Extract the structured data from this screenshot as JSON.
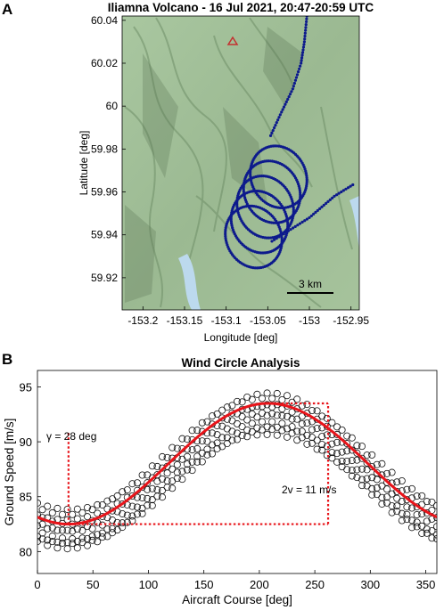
{
  "panel_a": {
    "label": "A",
    "title": "Iliamna Volcano - 16 Jul 2021, 20:47-20:59 UTC",
    "xlabel": "Longitude [deg]",
    "ylabel": "Latitude [deg]",
    "xticks": [
      "-153.2",
      "-153.15",
      "-153.1",
      "-153.05",
      "-153",
      "-152.95"
    ],
    "yticks": [
      "60.04",
      "60.02",
      "60",
      "59.98",
      "59.96",
      "59.94",
      "59.92"
    ],
    "scalebar_label": "3 km",
    "track_color": "#0d1a8c",
    "map_color": "#9fbf96"
  },
  "panel_b": {
    "label": "B",
    "title": "Wind Circle Analysis",
    "xlabel": "Aircraft Course [deg]",
    "ylabel": "Ground Speed [m/s]",
    "xticks": [
      "0",
      "50",
      "100",
      "150",
      "200",
      "250",
      "300",
      "350"
    ],
    "yticks": [
      "95",
      "90",
      "85",
      "80"
    ],
    "gamma_label": "γ = 28 deg",
    "amp_label": "2v = 11 m/s",
    "fit_color": "#e8141a",
    "annotation_color": "#e8141a"
  },
  "chart_data": [
    {
      "type": "scatter",
      "title": "Iliamna Volcano - 16 Jul 2021, 20:47-20:59 UTC",
      "xlabel": "Longitude [deg]",
      "ylabel": "Latitude [deg]",
      "xlim": [
        -153.225,
        -152.94
      ],
      "ylim": [
        59.905,
        60.042
      ],
      "grid": false,
      "background": "shaded relief map",
      "series": [
        {
          "transit_in": [
            [
              -153.003,
              60.042
            ],
            [
              -153.006,
              60.03
            ],
            [
              -153.01,
              60.02
            ],
            [
              -153.02,
              60.008
            ],
            [
              -153.035,
              59.996
            ],
            [
              -153.048,
              59.985
            ]
          ],
          "circles": [
            {
              "center": [
                -153.037,
                59.967
              ],
              "rx": 0.033,
              "ry": 0.0148
            },
            {
              "center": [
                -153.045,
                59.96
              ],
              "rx": 0.033,
              "ry": 0.0148
            },
            {
              "center": [
                -153.053,
                59.953
              ],
              "rx": 0.033,
              "ry": 0.0148
            },
            {
              "center": [
                -153.06,
                59.946
              ],
              "rx": 0.033,
              "ry": 0.0148
            },
            {
              "center": [
                -153.067,
                59.939
              ],
              "rx": 0.033,
              "ry": 0.0148
            }
          ],
          "transit_out": [
            [
              -153.045,
              59.937
            ],
            [
              -153.0,
              59.948
            ],
            [
              -152.97,
              59.958
            ],
            [
              -152.945,
              59.964
            ]
          ]
        }
      ],
      "markers": [
        {
          "type": "volcano-summit",
          "lon": -153.09,
          "lat": 60.031
        }
      ],
      "scalebar": {
        "label": "3 km"
      }
    },
    {
      "type": "scatter",
      "title": "Wind Circle Analysis",
      "xlabel": "Aircraft Course [deg]",
      "ylabel": "Ground Speed [m/s]",
      "xlim": [
        0,
        360
      ],
      "ylim": [
        78,
        96.5
      ],
      "grid": false,
      "series": [
        {
          "name": "",
          "kind": "loop",
          "values_at": {
            "0": 85.0,
            "28": 83.6,
            "208": 94.2,
            "360": 84.5
          }
        },
        {
          "name": "",
          "kind": "loop",
          "values_at": {
            "0": 84.0,
            "28": 82.7,
            "208": 93.3,
            "360": 83.6
          }
        },
        {
          "name": "",
          "kind": "loop",
          "values_at": {
            "0": 83.0,
            "28": 81.9,
            "208": 92.5,
            "360": 82.7
          }
        },
        {
          "name": "",
          "kind": "loop",
          "values_at": {
            "0": 82.2,
            "28": 81.0,
            "208": 91.6,
            "360": 81.8
          }
        },
        {
          "name": "",
          "kind": "loop",
          "values_at": {
            "0": 81.4,
            "28": 80.5,
            "208": 90.9,
            "360": 81.0
          }
        }
      ],
      "fit": {
        "type": "sinusoid",
        "mean": 88.0,
        "half_amplitude": 5.5,
        "min_course": 28,
        "max_course": 208
      },
      "annotations": {
        "gamma_deg": 28,
        "amplitude_2v": 11,
        "range_box": {
          "x": [
            28,
            262
          ],
          "y": [
            82.5,
            93.5
          ]
        }
      }
    }
  ]
}
